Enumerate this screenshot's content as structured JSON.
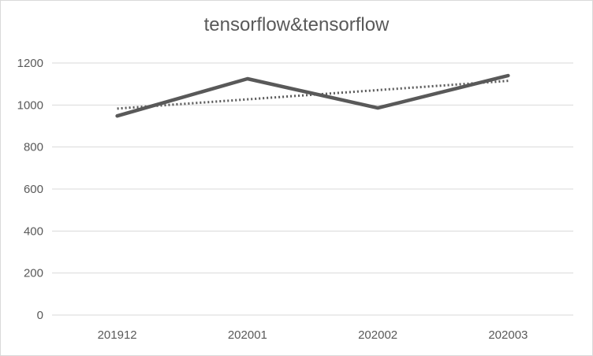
{
  "chart_data": {
    "type": "line",
    "title": "tensorflow&tensorflow",
    "categories": [
      "201912",
      "202001",
      "202002",
      "202003"
    ],
    "series": [
      {
        "values": [
          948,
          1125,
          986,
          1140
        ],
        "color": "#595959",
        "style": "solid"
      },
      {
        "values": [
          983,
          1027,
          1071,
          1115
        ],
        "color": "#595959",
        "style": "dotted",
        "trendline": true
      }
    ],
    "yticks": [
      "0",
      "200",
      "400",
      "600",
      "800",
      "1000",
      "1200"
    ],
    "ylim": [
      0,
      1200
    ],
    "grid": true,
    "legend": "none"
  }
}
